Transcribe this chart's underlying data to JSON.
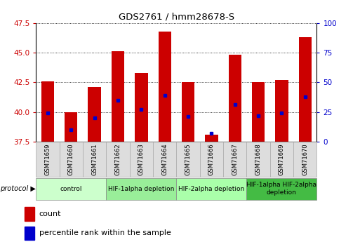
{
  "title": "GDS2761 / hmm28678-S",
  "samples": [
    "GSM71659",
    "GSM71660",
    "GSM71661",
    "GSM71662",
    "GSM71663",
    "GSM71664",
    "GSM71665",
    "GSM71666",
    "GSM71667",
    "GSM71668",
    "GSM71669",
    "GSM71670"
  ],
  "bar_tops": [
    42.6,
    40.0,
    42.1,
    45.1,
    43.3,
    46.8,
    42.5,
    38.1,
    44.8,
    42.5,
    42.7,
    46.3
  ],
  "bar_bottom": 37.5,
  "blue_dot_values": [
    39.9,
    38.5,
    39.5,
    41.0,
    40.2,
    41.4,
    39.6,
    38.2,
    40.6,
    39.7,
    39.9,
    41.3
  ],
  "ylim_left": [
    37.5,
    47.5
  ],
  "ylim_right": [
    0,
    100
  ],
  "yticks_left": [
    37.5,
    40.0,
    42.5,
    45.0,
    47.5
  ],
  "yticks_right": [
    0,
    25,
    50,
    75,
    100
  ],
  "bar_color": "#cc0000",
  "dot_color": "#0000cc",
  "protocol_groups": [
    {
      "label": "control",
      "start": 0,
      "end": 2,
      "color": "#ccffcc"
    },
    {
      "label": "HIF-1alpha depletion",
      "start": 3,
      "end": 5,
      "color": "#99ee99"
    },
    {
      "label": "HIF-2alpha depletion",
      "start": 6,
      "end": 8,
      "color": "#aaffaa"
    },
    {
      "label": "HIF-1alpha HIF-2alpha\ndepletion",
      "start": 9,
      "end": 11,
      "color": "#44bb44"
    }
  ],
  "protocol_label": "protocol",
  "legend_count_label": "count",
  "legend_pct_label": "percentile rank within the sample",
  "tick_label_color_left": "#cc0000",
  "tick_label_color_right": "#0000cc"
}
